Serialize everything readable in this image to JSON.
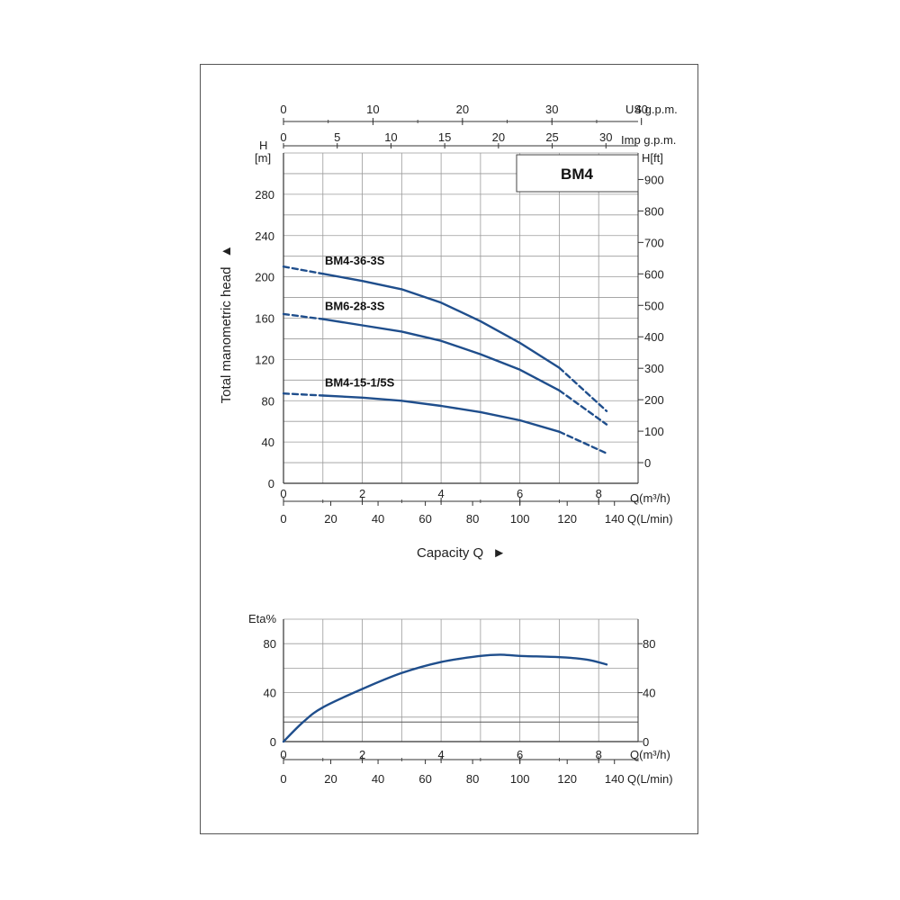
{
  "chart_data": [
    {
      "type": "line",
      "title": "BM4",
      "xlabel": "Capacity Q",
      "ylabel": "Total manometric head",
      "x_axis_units": "Q(m³/h)",
      "x_secondary_units": "Q(L/min)",
      "x_top_axis_1_units": "US g.p.m.",
      "x_top_axis_2_units": "Imp g.p.m.",
      "y_left_units_top": "H",
      "y_left_units_bottom": "[m]",
      "y_right_units": "H[ft]",
      "xlim": [
        0,
        9
      ],
      "ylim": [
        0,
        320
      ],
      "grid": true,
      "x_ticks": [
        0,
        2,
        4,
        6,
        8
      ],
      "x_secondary_ticks": [
        0,
        20,
        40,
        60,
        80,
        100,
        120,
        140
      ],
      "x_top_1_ticks": [
        0,
        10,
        20,
        30,
        40
      ],
      "x_top_2_ticks": [
        0,
        5,
        10,
        15,
        20,
        25,
        30
      ],
      "y_ticks": [
        0,
        40,
        80,
        120,
        160,
        200,
        240,
        280
      ],
      "y_right_ticks": [
        0,
        100,
        200,
        300,
        400,
        500,
        600,
        700,
        800,
        900
      ],
      "series": [
        {
          "name": "BM4-36-3S",
          "color": "#1f4e8c",
          "x": [
            0,
            1,
            2,
            3,
            4,
            5,
            6,
            7,
            8.2
          ],
          "y": [
            210,
            203,
            196,
            188,
            175,
            157,
            136,
            112,
            70
          ],
          "dashed_x_ranges": [
            [
              0,
              1
            ],
            [
              7,
              8.2
            ]
          ]
        },
        {
          "name": "BM6-28-3S",
          "color": "#1f4e8c",
          "x": [
            0,
            1,
            2,
            3,
            4,
            5,
            6,
            7,
            8.2
          ],
          "y": [
            164,
            159,
            153,
            147,
            138,
            125,
            110,
            90,
            57
          ],
          "dashed_x_ranges": [
            [
              0,
              1
            ],
            [
              7,
              8.2
            ]
          ]
        },
        {
          "name": "BM4-15-1/5S",
          "color": "#1f4e8c",
          "x": [
            0,
            1,
            2,
            3,
            4,
            5,
            6,
            7,
            8.2
          ],
          "y": [
            87,
            85,
            83,
            80,
            75,
            69,
            61,
            50,
            29
          ],
          "dashed_x_ranges": [
            [
              0,
              1
            ],
            [
              7,
              8.2
            ]
          ]
        }
      ]
    },
    {
      "type": "line",
      "title": "",
      "ylabel": "Eta%",
      "x_axis_units": "Q(m³/h)",
      "x_secondary_units": "Q(L/min)",
      "xlim": [
        0,
        9
      ],
      "ylim": [
        0,
        100
      ],
      "grid": true,
      "x_ticks": [
        0,
        2,
        4,
        6,
        8
      ],
      "x_secondary_ticks": [
        0,
        20,
        40,
        60,
        80,
        100,
        120,
        140
      ],
      "y_ticks": [
        0,
        40,
        80
      ],
      "y_right_ticks": [
        0,
        40,
        80
      ],
      "series": [
        {
          "color": "#1f4e8c",
          "x": [
            0,
            0.5,
            1,
            2,
            3,
            4,
            5,
            5.5,
            6,
            7,
            7.7,
            8.2
          ],
          "y": [
            0,
            16,
            28,
            43,
            56,
            65,
            70,
            71,
            70,
            69,
            67,
            63
          ]
        }
      ]
    }
  ]
}
